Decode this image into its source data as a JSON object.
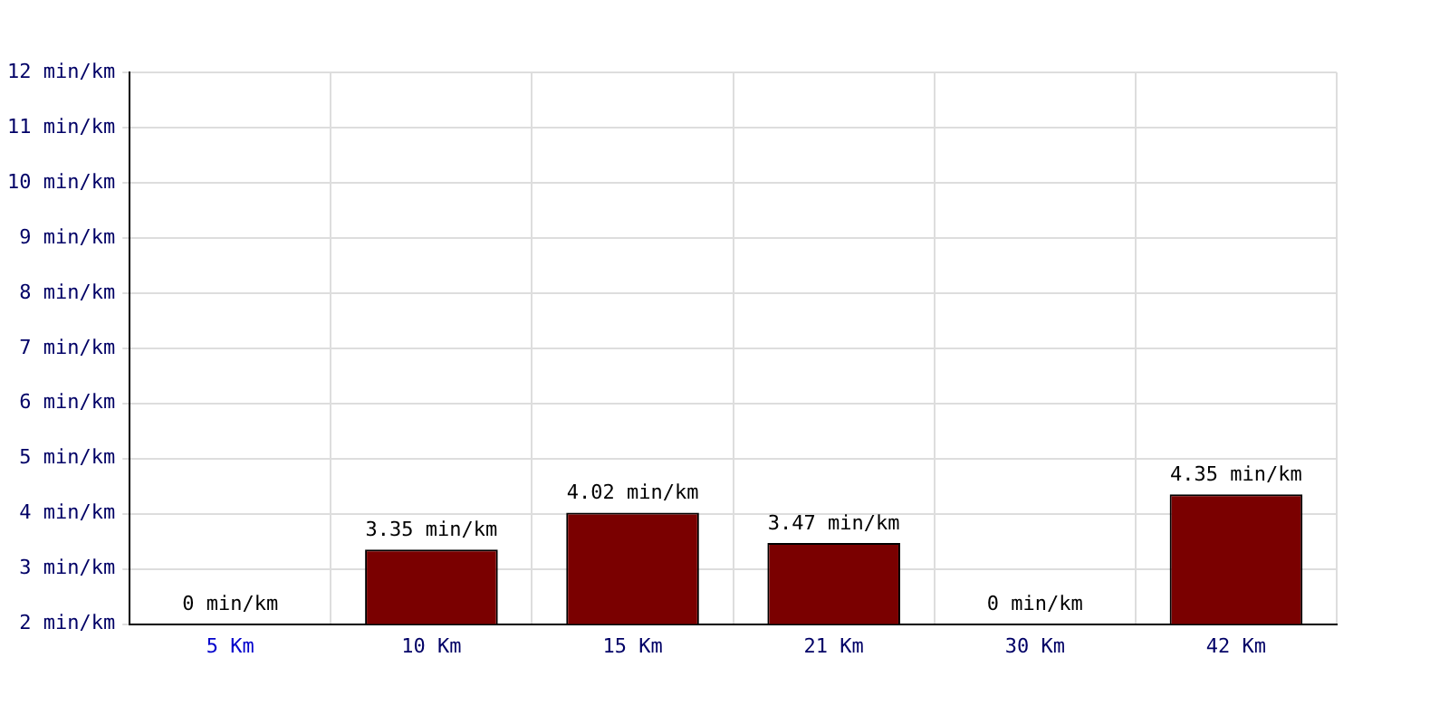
{
  "chart_data": {
    "type": "bar",
    "categories": [
      "5 Km",
      "10 Km",
      "15 Km",
      "21 Km",
      "30 Km",
      "42 Km"
    ],
    "values": [
      null,
      3.35,
      4.02,
      3.47,
      null,
      4.35
    ],
    "value_labels": [
      "0 min/km",
      "3.35 min/km",
      "4.02 min/km",
      "3.47 min/km",
      "0 min/km",
      "4.35 min/km"
    ],
    "color": "#7a0000",
    "ylim": [
      2,
      12
    ],
    "yticks": [
      {
        "value": 2,
        "label": "2 min/km"
      },
      {
        "value": 3,
        "label": "3 min/km"
      },
      {
        "value": 4,
        "label": "4 min/km"
      },
      {
        "value": 5,
        "label": "5 min/km"
      },
      {
        "value": 6,
        "label": "6 min/km"
      },
      {
        "value": 7,
        "label": "7 min/km"
      },
      {
        "value": 8,
        "label": "8 min/km"
      },
      {
        "value": 9,
        "label": "9 min/km"
      },
      {
        "value": 10,
        "label": "10 min/km"
      },
      {
        "value": 11,
        "label": "11 min/km"
      },
      {
        "value": 12,
        "label": "12 min/km"
      }
    ],
    "grid": true
  }
}
